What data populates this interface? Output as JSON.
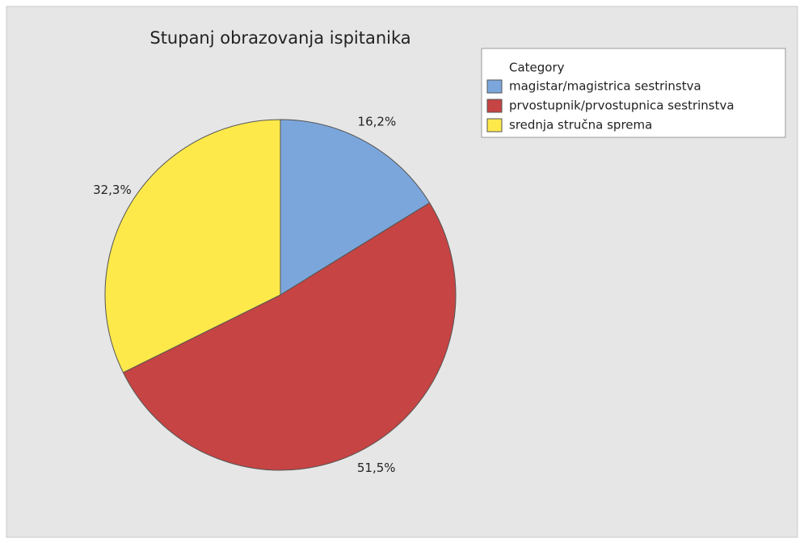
{
  "chart_data": {
    "type": "pie",
    "title": "Stupanj obrazovanja ispitanika",
    "legend_title": "Category",
    "categories": [
      "magistar/magistrica sestrinstva",
      "prvostupnik/prvostupnica sestrinstva",
      "srednja stručna sprema"
    ],
    "values": [
      16.2,
      51.5,
      32.3
    ],
    "value_labels": [
      "16,2%",
      "51,5%",
      "32,3%"
    ],
    "colors": [
      "#7ba6db",
      "#c64443",
      "#fde94a"
    ],
    "legend": "top-right"
  }
}
